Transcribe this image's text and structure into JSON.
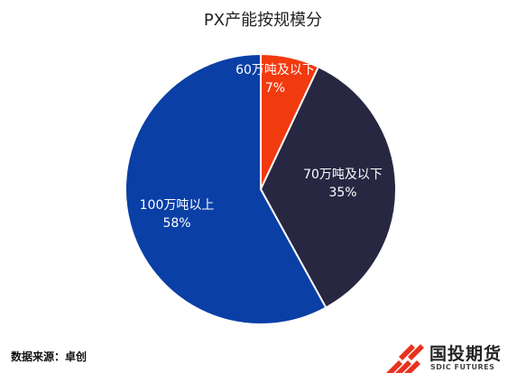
{
  "title": "PX产能按规模分",
  "source_text": "数据来源：卓创",
  "logo": {
    "name": "国投期货",
    "subtitle": "SDIC FUTURES",
    "colors": [
      "#e8321e",
      "#e8321e",
      "#e8321e"
    ]
  },
  "chart_data": {
    "type": "pie",
    "title": "PX产能按规模分",
    "start_angle_deg": 0,
    "direction": "clockwise",
    "slices": [
      {
        "label": "60万吨及以下",
        "value": 7,
        "percent_label": "7%",
        "color": "#f23a0f"
      },
      {
        "label": "70万吨及以下",
        "value": 35,
        "percent_label": "35%",
        "color": "#272742"
      },
      {
        "label": "100万吨以上",
        "value": 58,
        "percent_label": "58%",
        "color": "#0a3fa6"
      }
    ]
  }
}
